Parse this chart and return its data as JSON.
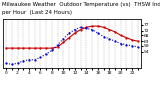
{
  "title1": "Milwaukee Weather  Outdoor Temperature (vs)  THSW Index",
  "title2": "per Hour  (Last 24 Hours)",
  "background_color": "#ffffff",
  "plot_bg_color": "#ffffff",
  "grid_color": "#aaaaaa",
  "hours": [
    0,
    1,
    2,
    3,
    4,
    5,
    6,
    7,
    8,
    9,
    10,
    11,
    12,
    13,
    14,
    15,
    16,
    17,
    18,
    19,
    20,
    21,
    22,
    23
  ],
  "temp_values": [
    57,
    57,
    57,
    57,
    57,
    57,
    57,
    57,
    57,
    58,
    62,
    66,
    70,
    73,
    75,
    76,
    76,
    75,
    73,
    71,
    68,
    66,
    64,
    63
  ],
  "thsw_values": [
    44,
    43,
    44,
    46,
    47,
    47,
    49,
    52,
    55,
    60,
    65,
    70,
    73,
    75,
    74,
    73,
    70,
    67,
    65,
    63,
    61,
    60,
    59,
    58
  ],
  "temp_color": "#cc0000",
  "thsw_color": "#0000cc",
  "ylim": [
    40,
    82
  ],
  "yticks_right": [
    54,
    59,
    63,
    68,
    72,
    77
  ],
  "title_fontsize": 4.0,
  "tick_fontsize": 3.2,
  "line_width": 0.8,
  "marker_size": 1.2
}
